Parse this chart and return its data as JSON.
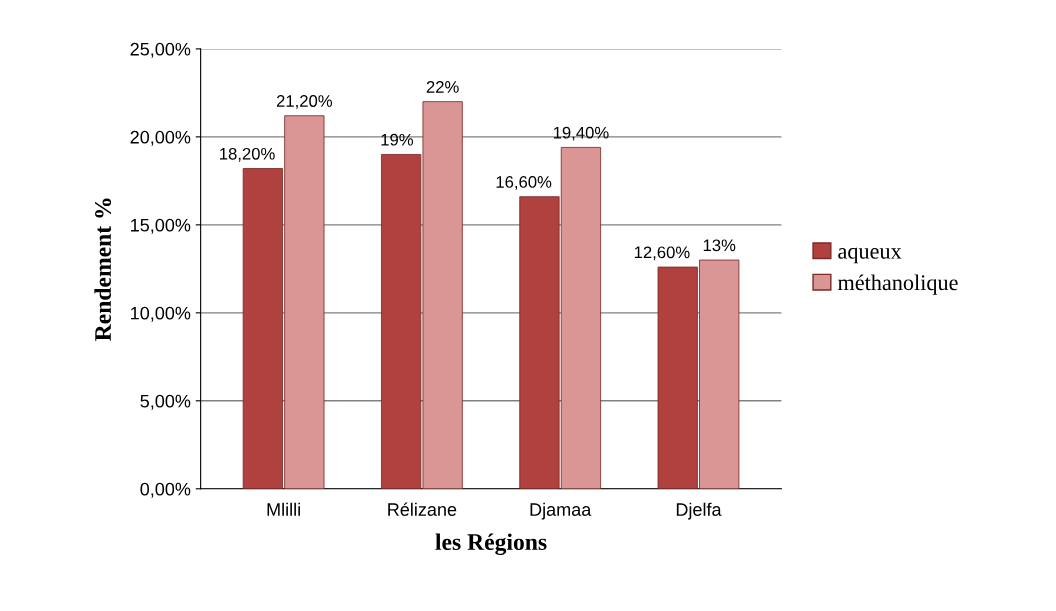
{
  "chart_data": {
    "type": "bar",
    "xlabel": "les Régions",
    "ylabel": "Rendement %",
    "categories": [
      "Mlilli",
      "Rélizane",
      "Djamaa",
      "Djelfa"
    ],
    "series": [
      {
        "name": "aqueux",
        "color": "#b0413e",
        "values": [
          18.2,
          19,
          16.6,
          12.6
        ],
        "value_labels": [
          "18,20%",
          "19%",
          "16,60%",
          "12,60%"
        ]
      },
      {
        "name": "méthanolique",
        "color": "#d99694",
        "values": [
          21.2,
          22,
          19.4,
          13
        ],
        "value_labels": [
          "21,20%",
          "22%",
          "19,40%",
          "13%"
        ]
      }
    ],
    "ylim": [
      0,
      25
    ],
    "yticks": [
      {
        "value": 0,
        "label": "0,00%"
      },
      {
        "value": 5,
        "label": "5,00%"
      },
      {
        "value": 10,
        "label": "10,00%"
      },
      {
        "value": 15,
        "label": "15,00%"
      },
      {
        "value": 20,
        "label": "20,00%"
      },
      {
        "value": 25,
        "label": "25,00%"
      }
    ],
    "grid": "y",
    "legend": "right"
  }
}
